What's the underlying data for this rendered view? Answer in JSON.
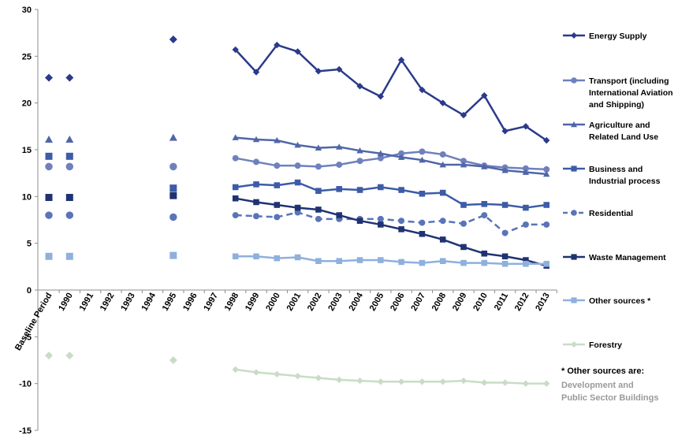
{
  "chart_data": {
    "type": "line",
    "title": "",
    "xlabel": "",
    "ylabel": "",
    "ylim": [
      -15,
      30
    ],
    "yticks": [
      -15,
      -10,
      -5,
      0,
      5,
      10,
      15,
      20,
      25,
      30
    ],
    "grid": false,
    "legend_position": "right",
    "categories": [
      "Baseline Period",
      "1990",
      "1991",
      "1992",
      "1993",
      "1994",
      "1995",
      "1996",
      "1997",
      "1998",
      "1999",
      "2000",
      "2001",
      "2002",
      "2003",
      "2004",
      "2005",
      "2006",
      "2007",
      "2008",
      "2009",
      "2010",
      "2011",
      "2012",
      "2013"
    ],
    "series": [
      {
        "name": "Energy Supply",
        "color": "#2b3a8a",
        "marker": "diamond",
        "dash": false,
        "values": [
          22.7,
          22.7,
          null,
          null,
          null,
          null,
          26.8,
          null,
          null,
          25.7,
          23.3,
          26.2,
          25.5,
          23.4,
          23.6,
          21.8,
          20.7,
          24.6,
          21.4,
          20.0,
          18.7,
          20.8,
          17.0,
          17.5,
          16.0
        ]
      },
      {
        "name": "Transport (including International Aviation and Shipping)",
        "color": "#6f80bd",
        "marker": "circle",
        "dash": false,
        "values": [
          13.2,
          13.2,
          null,
          null,
          null,
          null,
          13.2,
          null,
          null,
          14.1,
          13.7,
          13.3,
          13.3,
          13.2,
          13.4,
          13.8,
          14.1,
          14.6,
          14.8,
          14.5,
          13.8,
          13.3,
          13.1,
          13.0,
          12.9
        ]
      },
      {
        "name": "Agriculture and Related Land Use",
        "color": "#4f66a8",
        "marker": "triangle",
        "dash": false,
        "values": [
          16.1,
          16.1,
          null,
          null,
          null,
          null,
          16.3,
          null,
          null,
          16.3,
          16.1,
          16.0,
          15.5,
          15.2,
          15.3,
          14.9,
          14.6,
          14.2,
          13.9,
          13.4,
          13.4,
          13.2,
          12.8,
          12.6,
          12.4
        ]
      },
      {
        "name": "Business and Industrial process",
        "color": "#3c5ba8",
        "marker": "square",
        "dash": false,
        "values": [
          14.3,
          14.3,
          null,
          null,
          null,
          null,
          10.9,
          null,
          null,
          11.0,
          11.3,
          11.2,
          11.5,
          10.6,
          10.8,
          10.7,
          11.0,
          10.7,
          10.3,
          10.4,
          9.1,
          9.2,
          9.1,
          8.8,
          9.1
        ]
      },
      {
        "name": "Residential",
        "color": "#5a74b8",
        "marker": "circle",
        "dash": true,
        "values": [
          8.0,
          8.0,
          null,
          null,
          null,
          null,
          7.8,
          null,
          null,
          8.0,
          7.9,
          7.8,
          8.3,
          7.6,
          7.6,
          7.6,
          7.6,
          7.4,
          7.2,
          7.4,
          7.1,
          8.0,
          6.1,
          7.0,
          7.0
        ]
      },
      {
        "name": "Waste Management",
        "color": "#1f3273",
        "marker": "square",
        "dash": false,
        "values": [
          9.9,
          9.9,
          null,
          null,
          null,
          null,
          10.1,
          null,
          null,
          9.8,
          9.4,
          9.1,
          8.8,
          8.6,
          8.0,
          7.4,
          7.0,
          6.5,
          6.0,
          5.4,
          4.6,
          3.9,
          3.6,
          3.2,
          2.6
        ]
      },
      {
        "name": "Other sources *",
        "color": "#8fb0dd",
        "marker": "square",
        "dash": false,
        "values": [
          3.6,
          3.6,
          null,
          null,
          null,
          null,
          3.7,
          null,
          null,
          3.6,
          3.6,
          3.4,
          3.5,
          3.1,
          3.1,
          3.2,
          3.2,
          3.0,
          2.9,
          3.1,
          2.9,
          2.9,
          2.8,
          2.8,
          2.8
        ]
      },
      {
        "name": "Forestry",
        "color": "#c9dcc6",
        "marker": "diamond",
        "dash": false,
        "values": [
          -7.0,
          -7.0,
          null,
          null,
          null,
          null,
          -7.5,
          null,
          null,
          -8.5,
          -8.8,
          -9.0,
          -9.2,
          -9.4,
          -9.6,
          -9.7,
          -9.8,
          -9.8,
          -9.8,
          -9.8,
          -9.7,
          -9.9,
          -9.9,
          -10.0,
          -10.0
        ]
      }
    ]
  },
  "note": {
    "title": "* Other sources are:",
    "body": [
      "Development and",
      "Public Sector Buildings"
    ]
  }
}
